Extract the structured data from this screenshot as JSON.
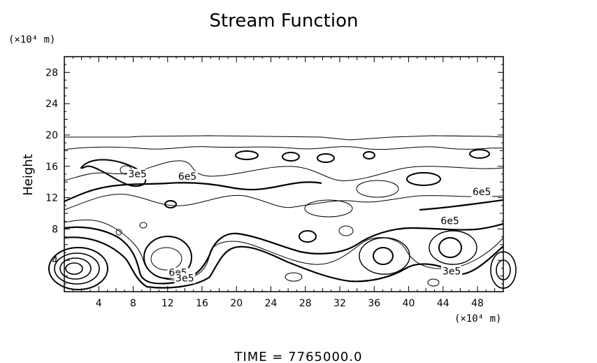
{
  "chart_data": {
    "type": "contour",
    "title": "Stream Function",
    "ylabel": "Height",
    "y_unit": "(×10⁴ m)",
    "x_unit": "(×10⁴ m)",
    "xlim": [
      0,
      51
    ],
    "ylim": [
      0,
      30
    ],
    "xticks": [
      4,
      8,
      12,
      16,
      20,
      24,
      28,
      32,
      36,
      40,
      44,
      48
    ],
    "yticks": [
      4,
      8,
      12,
      16,
      20,
      24,
      28
    ],
    "grid": false,
    "contour_labels": [
      {
        "text": "3e5",
        "x": 8.5,
        "y": 14.6
      },
      {
        "text": "6e5",
        "x": 14.3,
        "y": 14.3
      },
      {
        "text": "6e5",
        "x": 48.5,
        "y": 12.3
      },
      {
        "text": "6e5",
        "x": 44.8,
        "y": 8.6
      },
      {
        "text": "6e5",
        "x": 13.2,
        "y": 2.0
      },
      {
        "text": "3e5",
        "x": 14.0,
        "y": 1.3
      },
      {
        "text": "3e5",
        "x": 45.0,
        "y": 2.2
      }
    ]
  },
  "footer": {
    "time_label": "TIME  =  7765000.0"
  }
}
